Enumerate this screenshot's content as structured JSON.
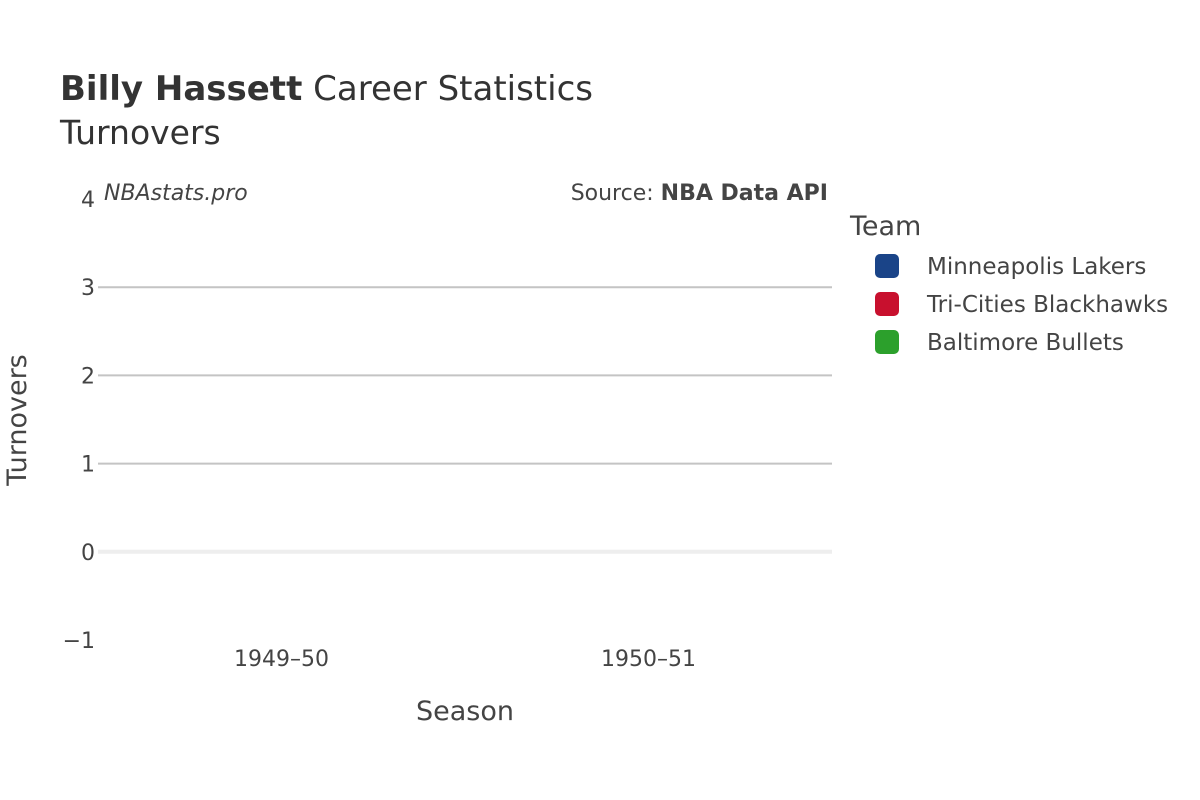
{
  "header": {
    "player_name": "Billy Hassett",
    "title_rest": " Career Statistics",
    "subtitle": "Turnovers"
  },
  "annotations": {
    "site": "NBAstats.pro",
    "source_prefix": "Source: ",
    "source_name": "NBA Data API"
  },
  "legend": {
    "title": "Team"
  },
  "chart_data": {
    "type": "bar",
    "title": "Billy Hassett Career Statistics",
    "subtitle": "Turnovers",
    "xlabel": "Season",
    "ylabel": "Turnovers",
    "categories": [
      "1949–50",
      "1950–51"
    ],
    "ylim": [
      -1,
      4
    ],
    "yticks": [
      -1,
      0,
      1,
      2,
      3,
      4
    ],
    "ytick_labels": [
      "−1",
      "0",
      "1",
      "2",
      "3",
      "4"
    ],
    "grid": true,
    "legend_position": "right",
    "series": [
      {
        "name": "Minneapolis Lakers",
        "color": "#1a4488",
        "values": [
          null,
          null
        ]
      },
      {
        "name": "Tri-Cities Blackhawks",
        "color": "#c8102e",
        "values": [
          null,
          null
        ]
      },
      {
        "name": "Baltimore Bullets",
        "color": "#2ca02c",
        "values": [
          null,
          null
        ]
      }
    ]
  }
}
